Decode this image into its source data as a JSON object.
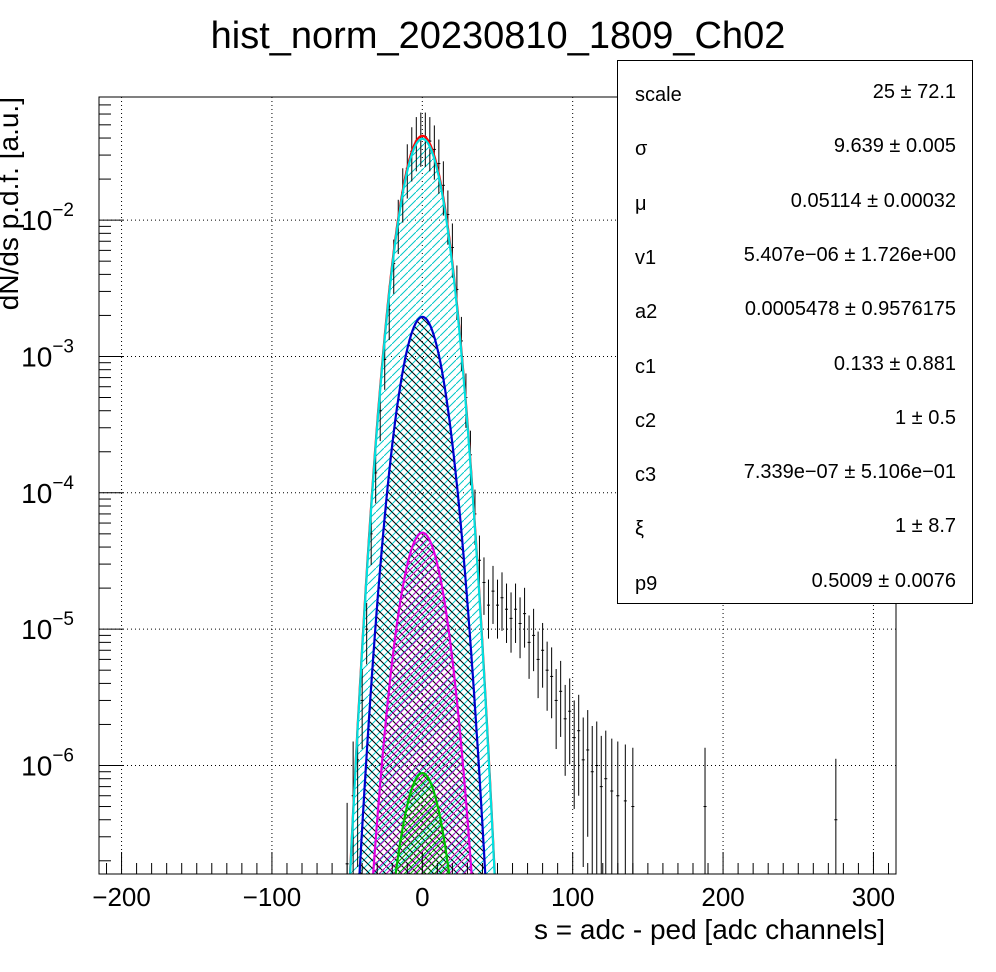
{
  "chart_data": {
    "type": "scatter",
    "title": "hist_norm_20230810_1809_Ch02",
    "xlabel": "s = adc - ped [adc channels]",
    "ylabel": "dN/ds p.d.f. [a.u.]",
    "xlim": [
      -215,
      315
    ],
    "ylim": [
      1.6e-07,
      0.08
    ],
    "y_scale": "log",
    "grid": true,
    "x_ticks": [
      {
        "value": -200,
        "label": "−200"
      },
      {
        "value": -100,
        "label": "−100"
      },
      {
        "value": 0,
        "label": "0"
      },
      {
        "value": 100,
        "label": "100"
      },
      {
        "value": 200,
        "label": "200"
      },
      {
        "value": 300,
        "label": "300"
      }
    ],
    "y_ticks": [
      {
        "value": 0.01,
        "base": "10",
        "exp": "−2"
      },
      {
        "value": 0.001,
        "base": "10",
        "exp": "−3"
      },
      {
        "value": 0.0001,
        "base": "10",
        "exp": "−4"
      },
      {
        "value": 1e-05,
        "base": "10",
        "exp": "−5"
      },
      {
        "value": 1e-06,
        "base": "10",
        "exp": "−6"
      }
    ],
    "series": [
      {
        "color": "#ff0000",
        "mu": 0.05,
        "sigma": 9.639,
        "peak": 0.0415,
        "fill": "none"
      },
      {
        "color": "#00e0e0",
        "mu": 0.05,
        "sigma": 9.639,
        "peak": 0.0395,
        "fill": "#00d8d8"
      },
      {
        "color": "#0000cc",
        "mu": 0.05,
        "sigma": 9.639,
        "peak": 0.00195,
        "fill": "#000000"
      },
      {
        "color": "#e000e0",
        "mu": 0.05,
        "sigma": 9.639,
        "peak": 5.1e-05,
        "fill": "#c000c0"
      },
      {
        "color": "#00c000",
        "mu": 0.05,
        "sigma": 9.639,
        "peak": 8.8e-07,
        "fill": "#00b000"
      }
    ],
    "data_points": [
      [
        -50,
        1.9e-07
      ],
      [
        -46,
        6e-07
      ],
      [
        -43,
        1.1e-06
      ],
      [
        -40,
        3e-06
      ],
      [
        -37,
        1e-05
      ],
      [
        -34,
        5e-05
      ],
      [
        -31,
        0.00014
      ],
      [
        -28,
        0.0004
      ],
      [
        -25,
        0.00095
      ],
      [
        -22,
        0.0022
      ],
      [
        -19,
        0.0048
      ],
      [
        -16,
        0.0094
      ],
      [
        -13,
        0.016
      ],
      [
        -10,
        0.024
      ],
      [
        -7,
        0.032
      ],
      [
        -4,
        0.038
      ],
      [
        -1,
        0.041
      ],
      [
        2,
        0.041
      ],
      [
        5,
        0.038
      ],
      [
        8,
        0.033
      ],
      [
        11,
        0.026
      ],
      [
        14,
        0.018
      ],
      [
        17,
        0.011
      ],
      [
        20,
        0.0063
      ],
      [
        23,
        0.0031
      ],
      [
        26,
        0.0013
      ],
      [
        29,
        0.0005
      ],
      [
        32,
        0.00019
      ],
      [
        35,
        7e-05
      ],
      [
        38,
        3.2e-05
      ],
      [
        41,
        2.2e-05
      ],
      [
        44,
        1.5e-05
      ],
      [
        47,
        1.9e-05
      ],
      [
        50,
        1.5e-05
      ],
      [
        53,
        1.7e-05
      ],
      [
        56,
        1.4e-05
      ],
      [
        59,
        1.2e-05
      ],
      [
        62,
        1.4e-05
      ],
      [
        65,
        1.1e-05
      ],
      [
        68,
        1.3e-05
      ],
      [
        71,
        8e-06
      ],
      [
        74,
        9e-06
      ],
      [
        77,
        6e-06
      ],
      [
        80,
        7e-06
      ],
      [
        83,
        5e-06
      ],
      [
        86,
        4.5e-06
      ],
      [
        89,
        3e-06
      ],
      [
        92,
        3.5e-06
      ],
      [
        95,
        2.2e-06
      ],
      [
        98,
        2.5e-06
      ],
      [
        101,
        1.6e-06
      ],
      [
        104,
        1.8e-06
      ],
      [
        107,
        1.1e-06
      ],
      [
        110,
        1.3e-06
      ],
      [
        113,
        9e-07
      ],
      [
        116,
        1e-06
      ],
      [
        119,
        7e-07
      ],
      [
        122,
        8e-07
      ],
      [
        126,
        6.5e-07
      ],
      [
        130,
        6e-07
      ],
      [
        135,
        5.5e-07
      ],
      [
        140,
        5e-07
      ],
      [
        188,
        5e-07
      ],
      [
        275,
        4e-07
      ]
    ]
  },
  "stats": {
    "rows": [
      {
        "name": "scale",
        "value": "25 ± 72.1"
      },
      {
        "name": "σ",
        "value": "9.639 ± 0.005"
      },
      {
        "name": "μ",
        "value": "0.05114 ± 0.00032"
      },
      {
        "name": "v1",
        "value": "5.407e−06 ± 1.726e+00"
      },
      {
        "name": "a2",
        "value": "0.0005478 ± 0.9576175"
      },
      {
        "name": "c1",
        "value": "0.133 ± 0.881"
      },
      {
        "name": "c2",
        "value": "1 ± 0.5"
      },
      {
        "name": "c3",
        "value": "7.339e−07 ± 5.106e−01"
      },
      {
        "name": "ξ",
        "value": "1 ± 8.7"
      },
      {
        "name": "p9",
        "value": "0.5009 ± 0.0076"
      }
    ]
  }
}
